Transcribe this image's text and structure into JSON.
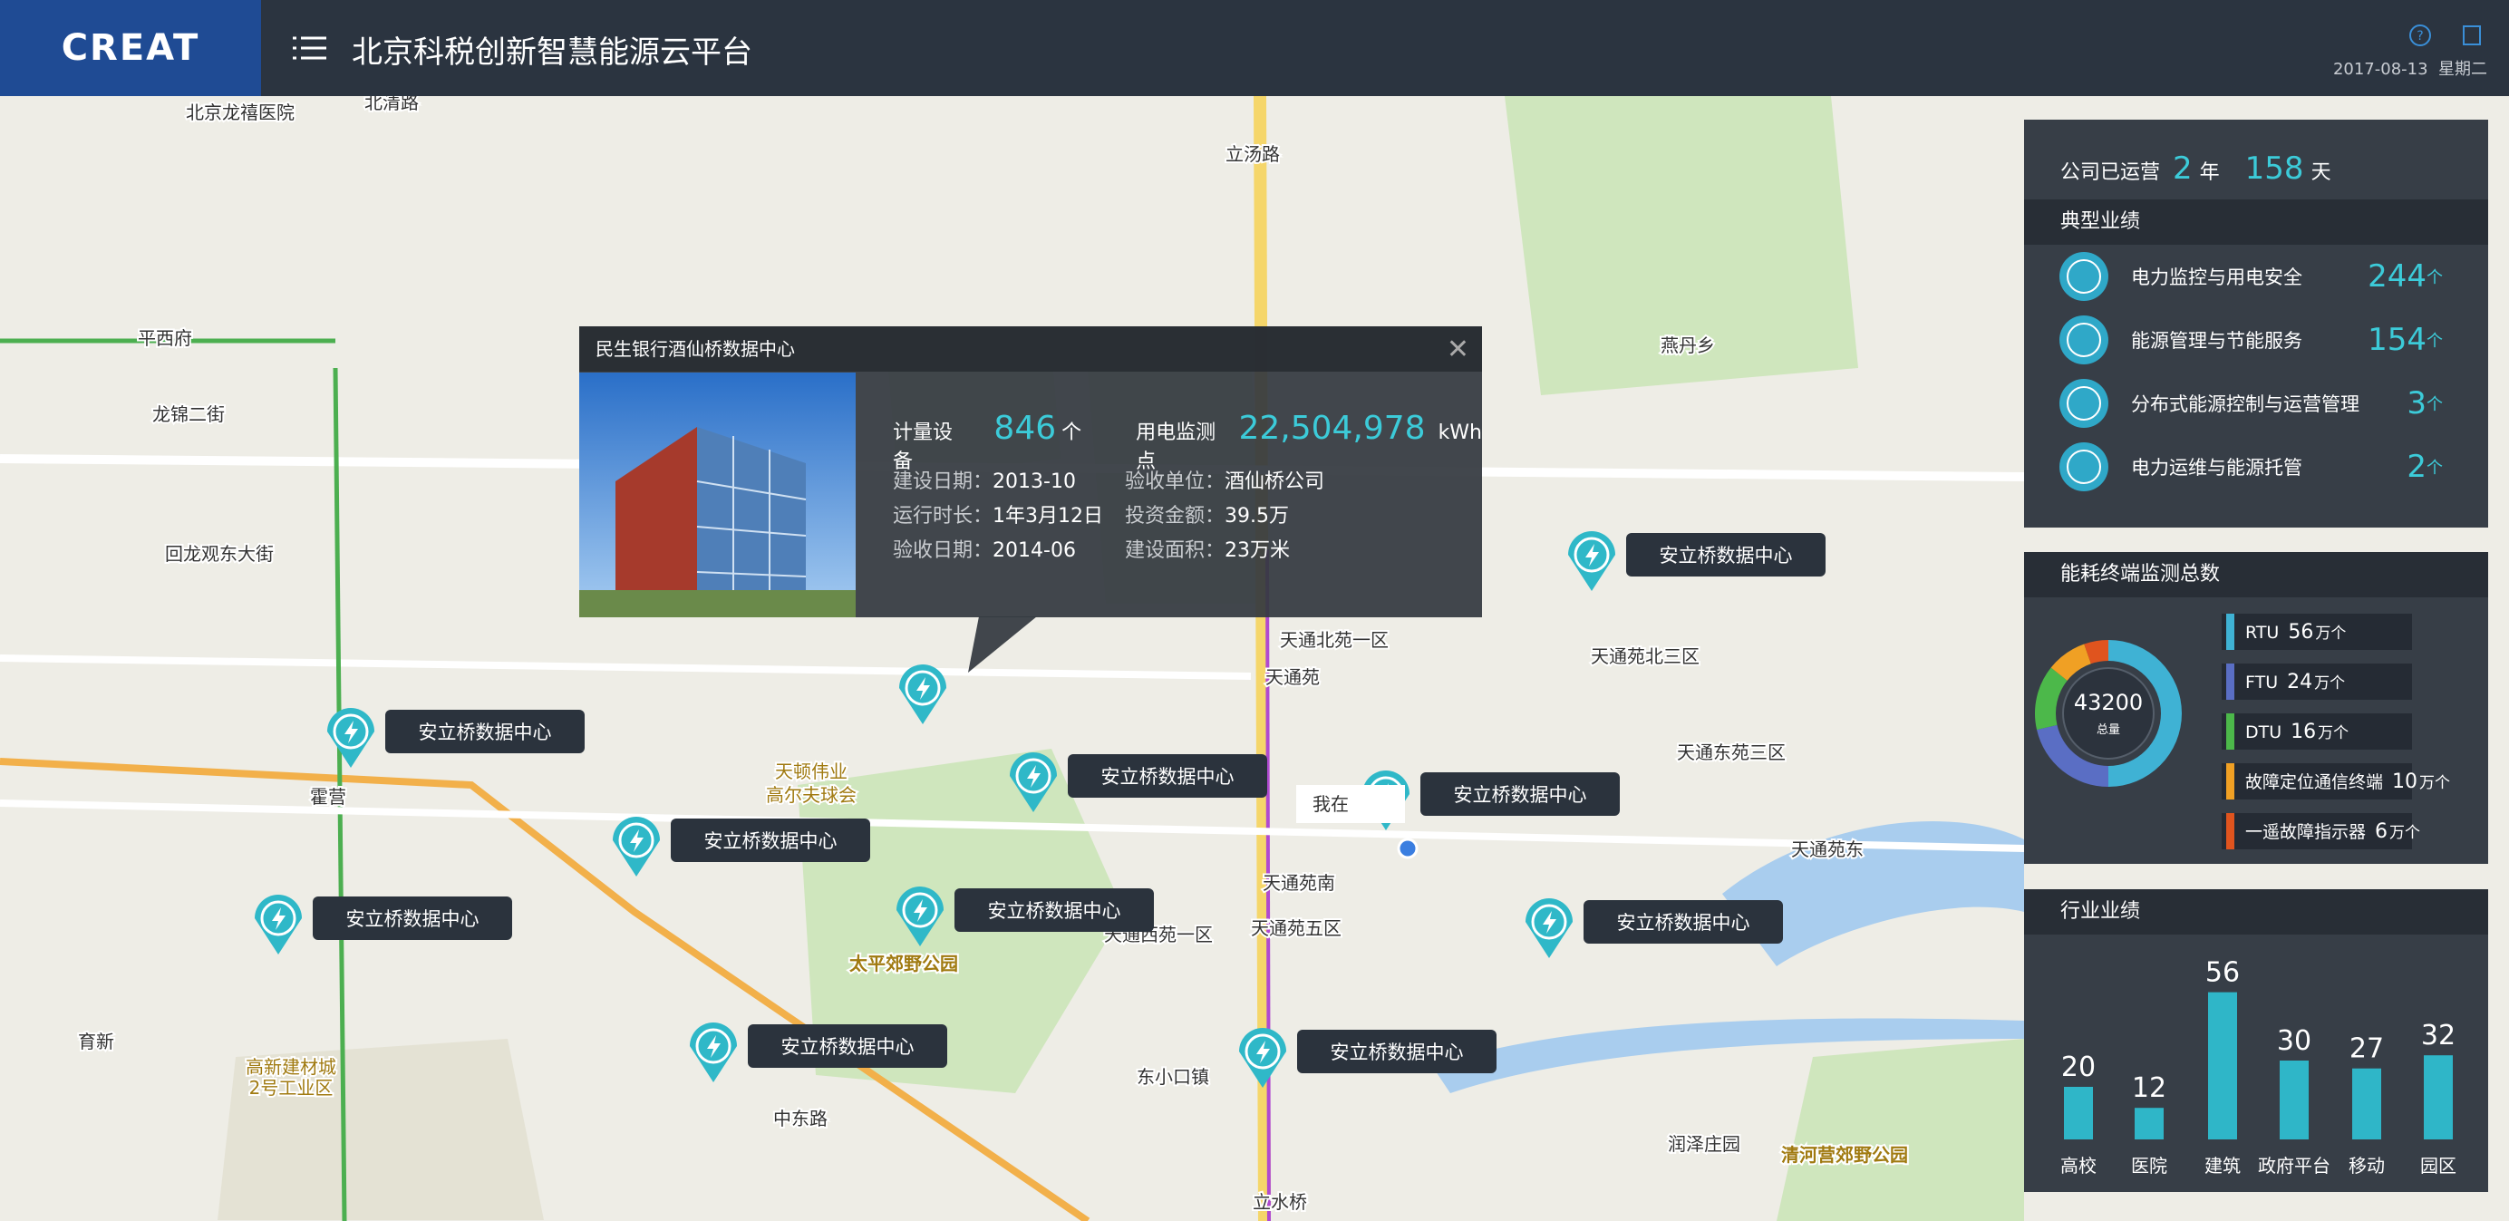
{
  "header": {
    "logo": "CREAT",
    "title": "北京科税创新智慧能源云平台",
    "date": "2017-08-13",
    "weekday": "星期二"
  },
  "map": {
    "labels": [
      "北清路",
      "北京龙禧医院",
      "平西府",
      "龙锦二街",
      "回龙观东大街",
      "霍营",
      "天通北苑一区",
      "天通苑",
      "天通苑北三区",
      "天通东苑三区",
      "天通苑东",
      "天通苑南",
      "天通西苑一区",
      "天通苑五区",
      "太平郊野公园",
      "天顿伟业",
      "高尔夫球会",
      "高新建材城",
      "2号工业区",
      "育新",
      "立水桥",
      "东小口镇",
      "中东路",
      "清河营郊野公园",
      "润泽庄园",
      "燕丹乡",
      "立汤路"
    ],
    "markers": [
      "安立桥数据中心",
      "安立桥数据中心",
      "安立桥数据中心",
      "安立桥数据中心",
      "安立桥数据中心",
      "安立桥数据中心",
      "安立桥数据中心",
      "安立桥数据中心",
      "安立桥数据中心",
      "安立桥数据中心"
    ],
    "location": "我在"
  },
  "popup": {
    "title": "民生银行酒仙桥数据中心",
    "stats": [
      {
        "label": "计量设备",
        "value": "846",
        "unit": "个"
      },
      {
        "label": "用电监测点",
        "value": "22,504,978",
        "unit": "kWh"
      }
    ],
    "details": [
      [
        {
          "label": "建设日期：",
          "value": "2013-10"
        },
        {
          "label": "验收单位：",
          "value": "酒仙桥公司"
        }
      ],
      [
        {
          "label": "运行时长：",
          "value": "1年3月12日"
        },
        {
          "label": "投资金额：",
          "value": "39.5万"
        }
      ],
      [
        {
          "label": "验收日期：",
          "value": "2014-06"
        },
        {
          "label": "建设面积：",
          "value": "23万米"
        }
      ]
    ]
  },
  "operation": {
    "label": "公司已运营",
    "years": "2",
    "year_unit": "年",
    "days": "158",
    "day_unit": "天"
  },
  "typical": {
    "title": "典型业绩",
    "items": [
      {
        "name": "电力监控与用电安全",
        "value": "244",
        "unit": "个"
      },
      {
        "name": "能源管理与节能服务",
        "value": "154",
        "unit": "个"
      },
      {
        "name": "分布式能源控制与运营管理",
        "value": "3",
        "unit": "个"
      },
      {
        "name": "电力运维与能源托管",
        "value": "2",
        "unit": "个"
      }
    ]
  },
  "terminals": {
    "title": "能耗终端监测总数",
    "total": "43200",
    "total_label": "总量",
    "unit": "万个",
    "chart": {
      "type": "pie",
      "categories": [
        "RTU",
        "FTU",
        "DTU",
        "故障定位通信终端",
        "一遥故障指示器"
      ],
      "values": [
        56,
        24,
        16,
        10,
        6
      ],
      "colors": [
        "#3fb2d4",
        "#5a6ec4",
        "#4cb84a",
        "#f0a024",
        "#e0541e"
      ]
    }
  },
  "industry": {
    "title": "行业业绩",
    "chart_data": {
      "type": "bar",
      "categories": [
        "高校",
        "医院",
        "建筑",
        "政府平台",
        "移动",
        "园区"
      ],
      "values": [
        20,
        12,
        56,
        30,
        27,
        32
      ],
      "color": "#2fb6c8",
      "ylim": [
        0,
        60
      ]
    }
  }
}
